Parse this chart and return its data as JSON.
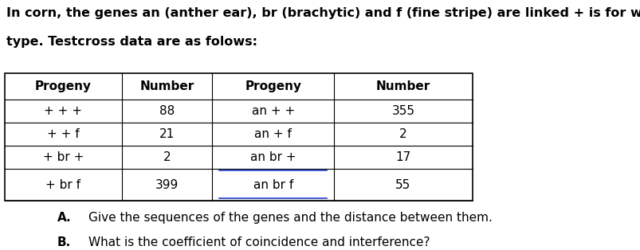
{
  "title_line1": "In corn, the genes an (anther ear), br (brachytic) and f (fine stripe) are linked + is for wild",
  "title_line2": "type. Testcross data are as folows:",
  "title_fontsize": 11.5,
  "table_headers": [
    "Progeny",
    "Number",
    "Progeny",
    "Number"
  ],
  "table_rows": [
    [
      "+ + +",
      "88",
      "an + +",
      "355"
    ],
    [
      "+ + f",
      "21",
      "an + f",
      "2"
    ],
    [
      "+ br +",
      "2",
      "an br +",
      "17"
    ],
    [
      "+ br f",
      "399",
      "an br f",
      "55"
    ]
  ],
  "underline_rows": [
    2,
    3
  ],
  "questions": [
    [
      "A.",
      "Give the sequences of the genes and the distance between them."
    ],
    [
      "B.",
      "What is the coefficient of coincidence and interference?"
    ]
  ],
  "bg_color": "#ffffff",
  "text_color": "#000000",
  "underline_color": "#1a3ecc"
}
